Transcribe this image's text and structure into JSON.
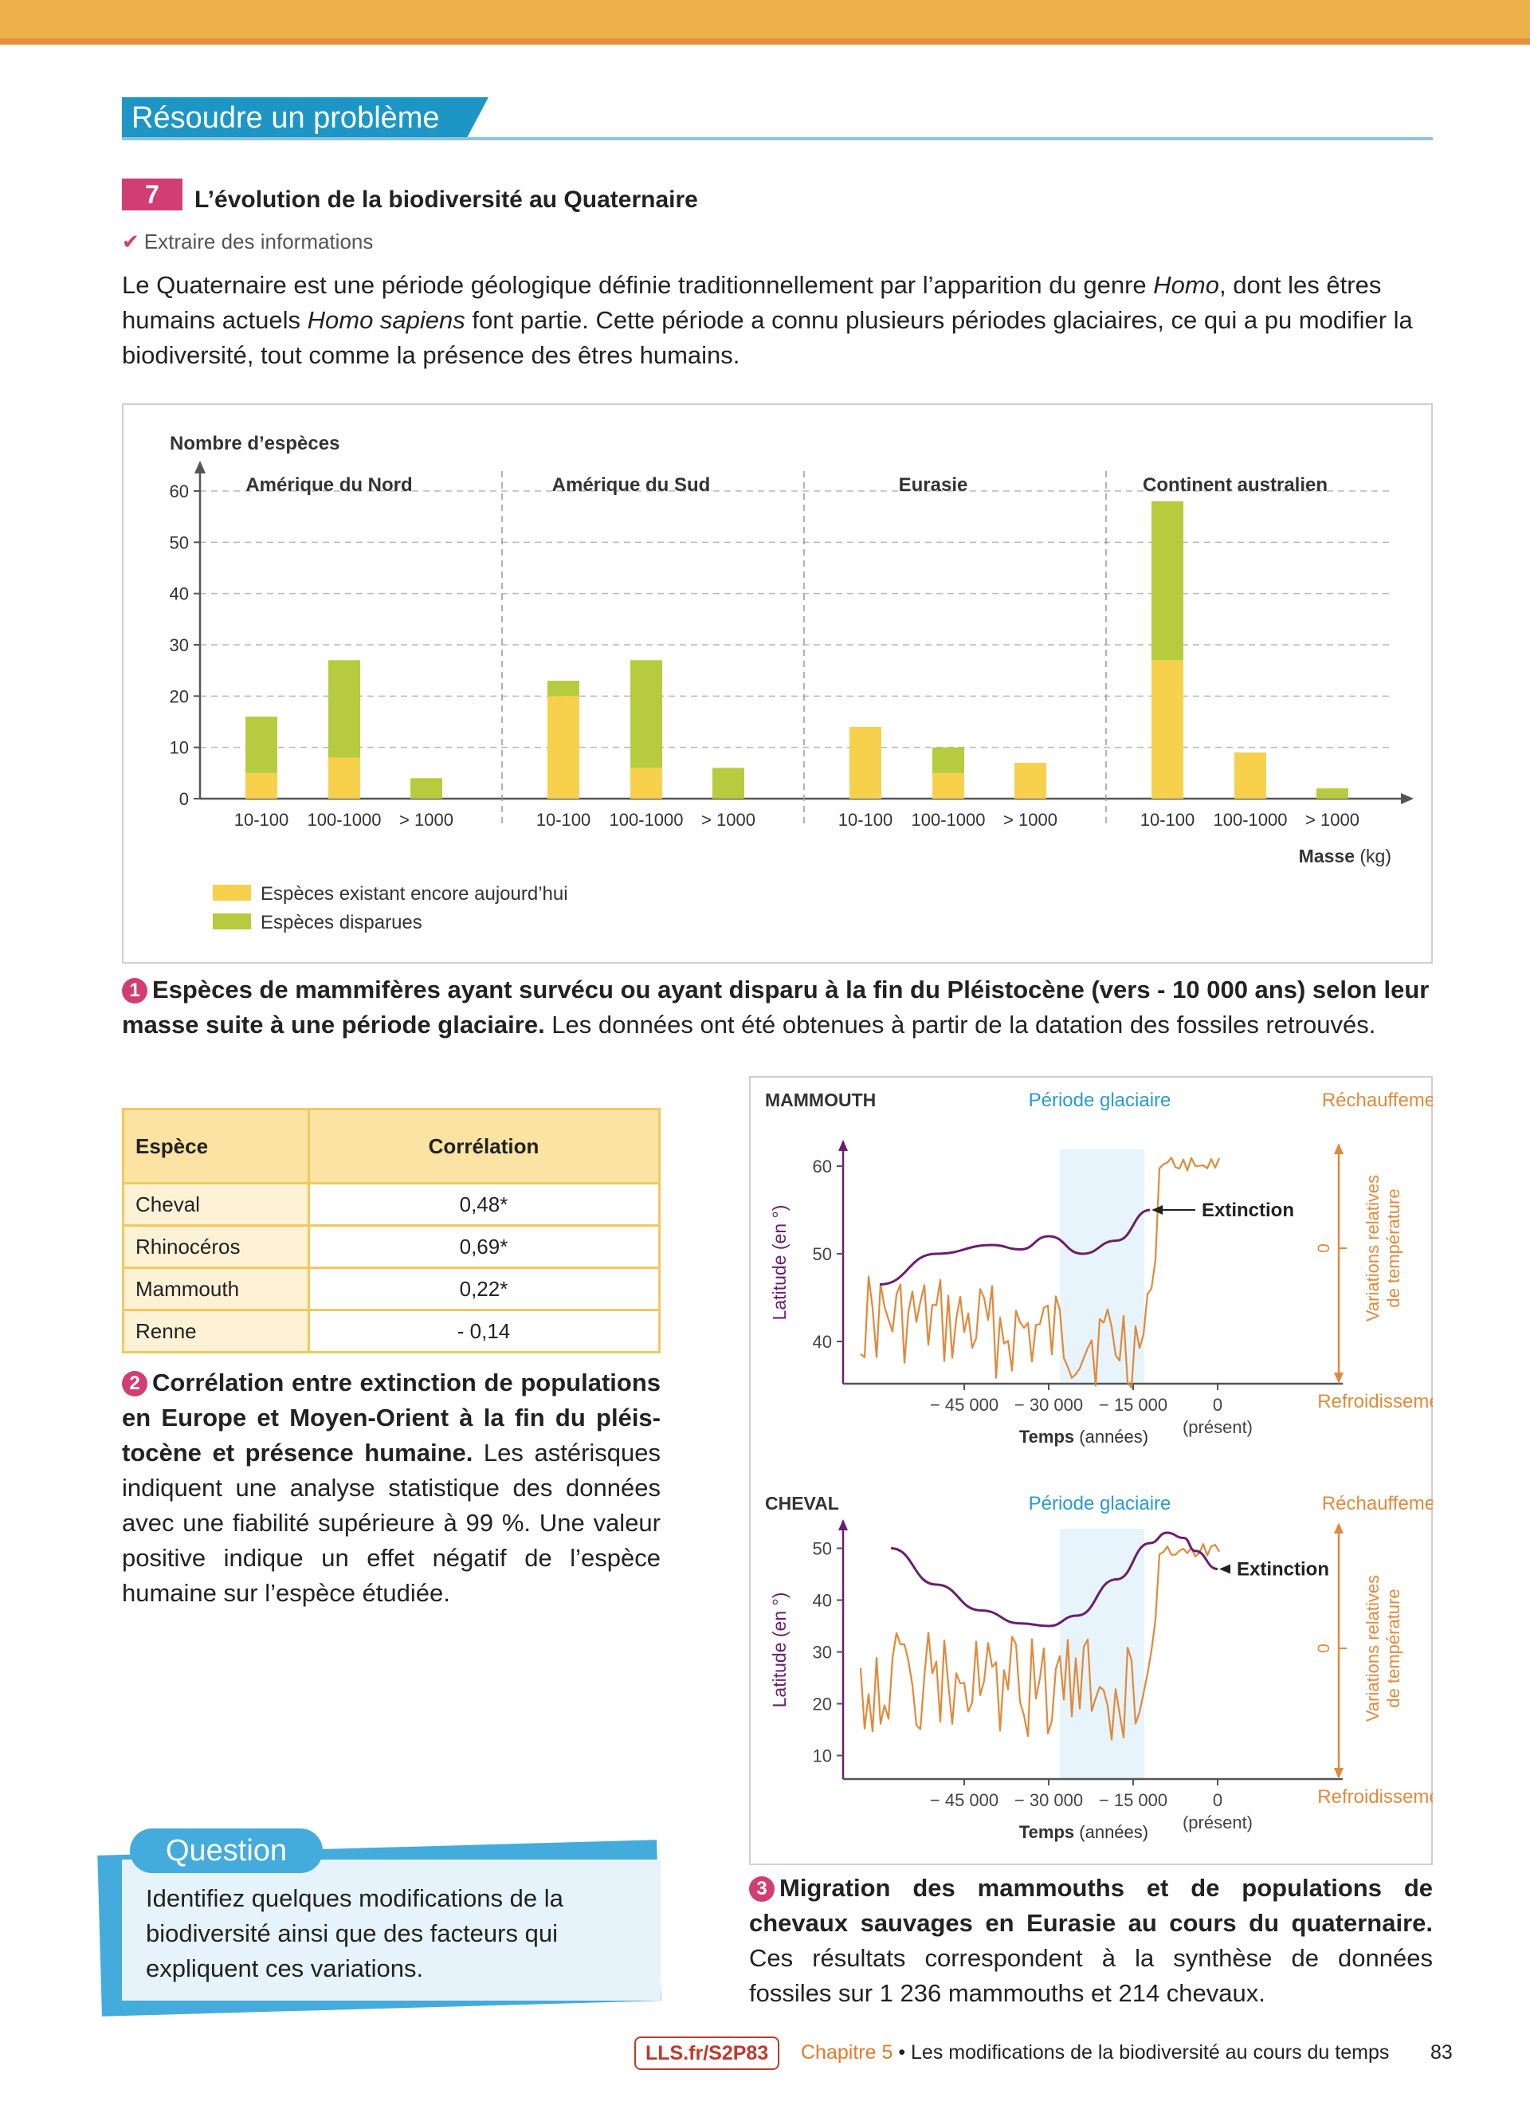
{
  "header": {
    "section_title": "Résoudre un problème"
  },
  "exercise": {
    "number": "7",
    "title": "L’évolution de la biodiversité au Quaternaire",
    "skill": "Extraire des informations",
    "intro_1": "Le Quaternaire est une période géologique définie traditionnellement par l’apparition du genre ",
    "intro_homo": "Homo",
    "intro_2": ", dont les êtres humains actuels ",
    "intro_sapiens": "Homo sapiens",
    "intro_3": " font partie. Cette période a connu plusieurs périodes glaciaires, ce qui a pu modifier la biodiversité, tout comme la présence des êtres humains."
  },
  "chart_data": [
    {
      "type": "bar",
      "stacked": true,
      "ylabel": "Nombre d’espèces",
      "xlabel": "Masse",
      "xlabel_unit": "(kg)",
      "ylim": [
        0,
        60
      ],
      "yticks": [
        0,
        10,
        20,
        30,
        40,
        50,
        60
      ],
      "grid": true,
      "legend_position": "bottom-left",
      "groups": [
        "Amérique du Nord",
        "Amérique du Sud",
        "Eurasie",
        "Continent australien"
      ],
      "categories": [
        "10-100",
        "100-1000",
        "> 1000"
      ],
      "series": [
        {
          "name": "Espèces existant encore aujourd’hui",
          "color": "#f7d14c",
          "values": [
            [
              5,
              8,
              0
            ],
            [
              20,
              6,
              0
            ],
            [
              14,
              5,
              7
            ],
            [
              27,
              9,
              0
            ]
          ]
        },
        {
          "name": "Espèces disparues",
          "color": "#b6cc3e",
          "values": [
            [
              11,
              19,
              4
            ],
            [
              3,
              21,
              6
            ],
            [
              0,
              5,
              0
            ],
            [
              31,
              0,
              2
            ]
          ]
        }
      ]
    },
    {
      "type": "line",
      "title": "MAMMOUTH",
      "shaded_label": "Période glaciaire",
      "shaded_range": [
        -28000,
        -13000
      ],
      "xlabel": "Temps",
      "xlabel_unit": "(années)",
      "xticks": [
        "− 45 000",
        "− 30 000",
        "− 15 000",
        "0"
      ],
      "present_label": "(présent)",
      "ylabel": "Latitude (en °)",
      "yticks": [
        40,
        50,
        60
      ],
      "ylim": [
        37,
        70
      ],
      "right_axis_label": "Variations relatives de température",
      "right_axis_zero": "0",
      "top_right_label": "Réchauffement",
      "bottom_right_label": "Refroidissement",
      "annotation": "Extinction",
      "series": [
        {
          "name": "Latitude",
          "color": "#6a1e6e",
          "x": [
            -60000,
            -50000,
            -40000,
            -35000,
            -30000,
            -24000,
            -18000,
            -12000
          ],
          "y": [
            46.5,
            50,
            51,
            50.5,
            52,
            50,
            51.5,
            55
          ]
        },
        {
          "name": "Température",
          "color": "#e08a3c"
        }
      ]
    },
    {
      "type": "line",
      "title": "CHEVAL",
      "shaded_label": "Période glaciaire",
      "shaded_range": [
        -28000,
        -13000
      ],
      "xlabel": "Temps",
      "xlabel_unit": "(années)",
      "xticks": [
        "− 45 000",
        "− 30 000",
        "− 15 000",
        "0"
      ],
      "present_label": "(présent)",
      "ylabel": "Latitude (en °)",
      "yticks": [
        10,
        20,
        30,
        40,
        50
      ],
      "ylim": [
        7,
        61
      ],
      "right_axis_label": "Variations relatives de température",
      "right_axis_zero": "0",
      "top_right_label": "Réchauffement",
      "bottom_right_label": "Refroidissement",
      "annotation": "Extinction",
      "series": [
        {
          "name": "Latitude",
          "color": "#6a1e6e",
          "x": [
            -58000,
            -50000,
            -42000,
            -35000,
            -30000,
            -25000,
            -18000,
            -12000,
            -9000,
            -6000,
            -4000,
            0
          ],
          "y": [
            50,
            43,
            38,
            35.5,
            35,
            37,
            44,
            51,
            53,
            52,
            49.5,
            46
          ]
        },
        {
          "name": "Température",
          "color": "#e08a3c"
        }
      ]
    }
  ],
  "doc1": {
    "badge": "1",
    "bold": "Espèces de mammifères ayant survécu ou ayant disparu à la fin du Pléistocène (vers - 10 000 ans) selon leur masse suite à une période glaciaire.",
    "text": " Les données ont été obtenues à partir de la datation des fossiles retrouvés."
  },
  "table": {
    "headers": [
      "Espèce",
      "Corrélation"
    ],
    "rows": [
      [
        "Cheval",
        "0,48*"
      ],
      [
        "Rhinocéros",
        "0,69*"
      ],
      [
        "Mammouth",
        "0,22*"
      ],
      [
        "Renne",
        "- 0,14"
      ]
    ]
  },
  "doc2": {
    "badge": "2",
    "bold": "Corrélation entre extinction de populations en Europe et Moyen-Orient à la fin du pléis-tocène et présence humaine.",
    "text": " Les astérisques indiquent une analyse statistique des données avec une fiabilité supérieure à 99 %. Une valeur positive indique un effet négatif de l’espèce humaine sur l’espèce étudiée."
  },
  "doc3": {
    "badge": "3",
    "bold": "Migration des mammouths et de populations de chevaux sauvages en Eurasie au cours du quaternaire.",
    "text": " Ces résultats correspondent à la synthèse de données fossiles sur 1 236 mammouths et 214 chevaux."
  },
  "question": {
    "label": "Question",
    "text": "Identifiez quelques modifications de la biodiversité ainsi que des facteurs qui expliquent ces variations."
  },
  "footer": {
    "link": "LLS.fr/S2P83",
    "chapter": "Chapitre 5",
    "separator": "•",
    "chapter_title": "Les modifications de la biodiversité au cours du temps",
    "page": "83"
  }
}
